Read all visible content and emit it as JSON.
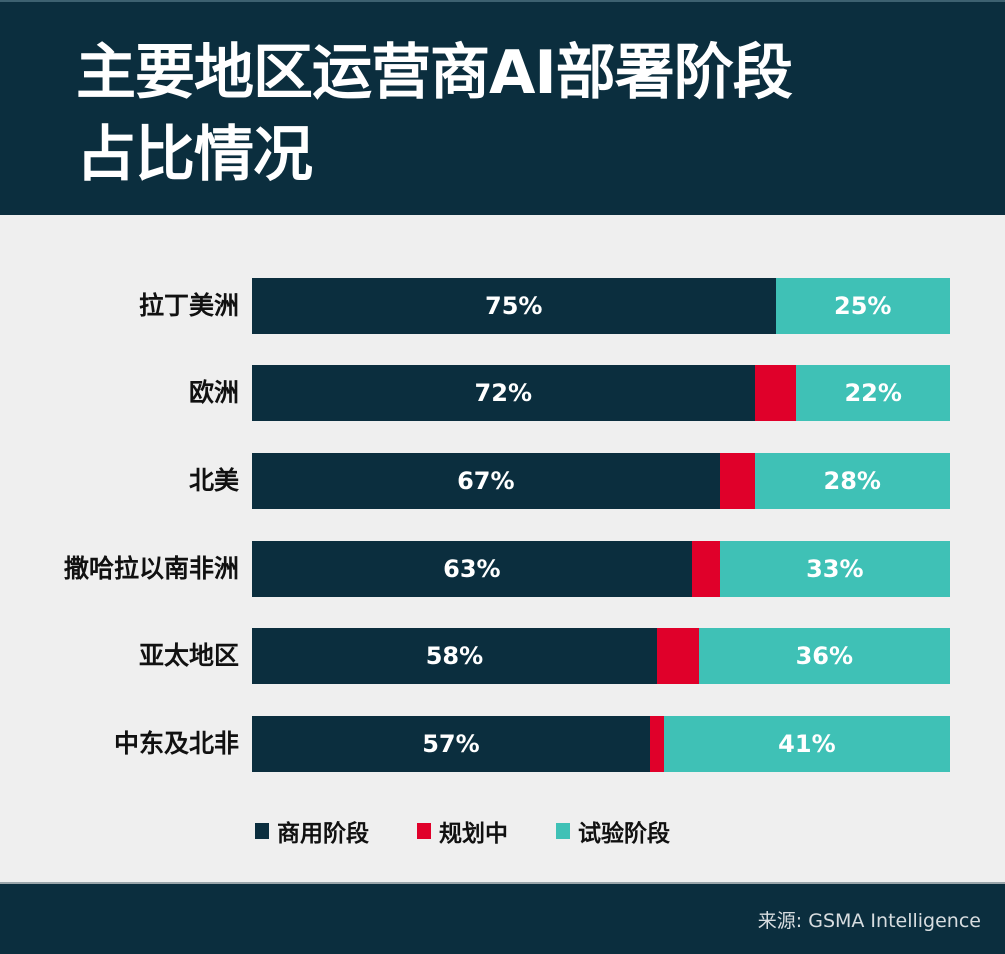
{
  "header": {
    "title_line1": "主要地区运营商AI部署阶段",
    "title_line2": "占比情况"
  },
  "colors": {
    "background": "#efefef",
    "header_bg": "#0b2e3e",
    "commercial": "#0b2e3e",
    "planning": "#e0002a",
    "trial": "#3fc1b6"
  },
  "legend": {
    "items": [
      {
        "label": "商用阶段",
        "color": "#0b2e3e"
      },
      {
        "label": "规划中",
        "color": "#e0002a"
      },
      {
        "label": "试验阶段",
        "color": "#3fc1b6"
      }
    ]
  },
  "rows": [
    {
      "label": "拉丁美洲",
      "commercial": 75,
      "planning": 0,
      "trial": 25,
      "commercial_label": "75%",
      "trial_label": "25%"
    },
    {
      "label": "欧洲",
      "commercial": 72,
      "planning": 6,
      "trial": 22,
      "commercial_label": "72%",
      "trial_label": "22%"
    },
    {
      "label": "北美",
      "commercial": 67,
      "planning": 5,
      "trial": 28,
      "commercial_label": "67%",
      "trial_label": "28%"
    },
    {
      "label": "撒哈拉以南非洲",
      "commercial": 63,
      "planning": 4,
      "trial": 33,
      "commercial_label": "63%",
      "trial_label": "33%"
    },
    {
      "label": "亚太地区",
      "commercial": 58,
      "planning": 6,
      "trial": 36,
      "commercial_label": "58%",
      "trial_label": "36%"
    },
    {
      "label": "中东及北非",
      "commercial": 57,
      "planning": 2,
      "trial": 41,
      "commercial_label": "57%",
      "trial_label": "41%"
    }
  ],
  "footer": {
    "source": "来源: GSMA Intelligence"
  },
  "chart_data": {
    "type": "bar",
    "orientation": "horizontal",
    "stacked": true,
    "title": "主要地区运营商AI部署阶段占比情况",
    "categories": [
      "拉丁美洲",
      "欧洲",
      "北美",
      "撒哈拉以南非洲",
      "亚太地区",
      "中东及北非"
    ],
    "series": [
      {
        "name": "商用阶段",
        "color": "#0b2e3e",
        "values": [
          75,
          72,
          67,
          63,
          58,
          57
        ]
      },
      {
        "name": "规划中",
        "color": "#e0002a",
        "values": [
          0,
          6,
          5,
          4,
          6,
          2
        ]
      },
      {
        "name": "试验阶段",
        "color": "#3fc1b6",
        "values": [
          25,
          22,
          28,
          33,
          36,
          41
        ]
      }
    ],
    "xlabel": "",
    "ylabel": "",
    "xlim": [
      0,
      100
    ],
    "unit": "%",
    "grid": false,
    "legend_position": "bottom",
    "data_labels": "commercial and trial segments labeled; planning unlabeled",
    "source": "来源: GSMA Intelligence"
  }
}
